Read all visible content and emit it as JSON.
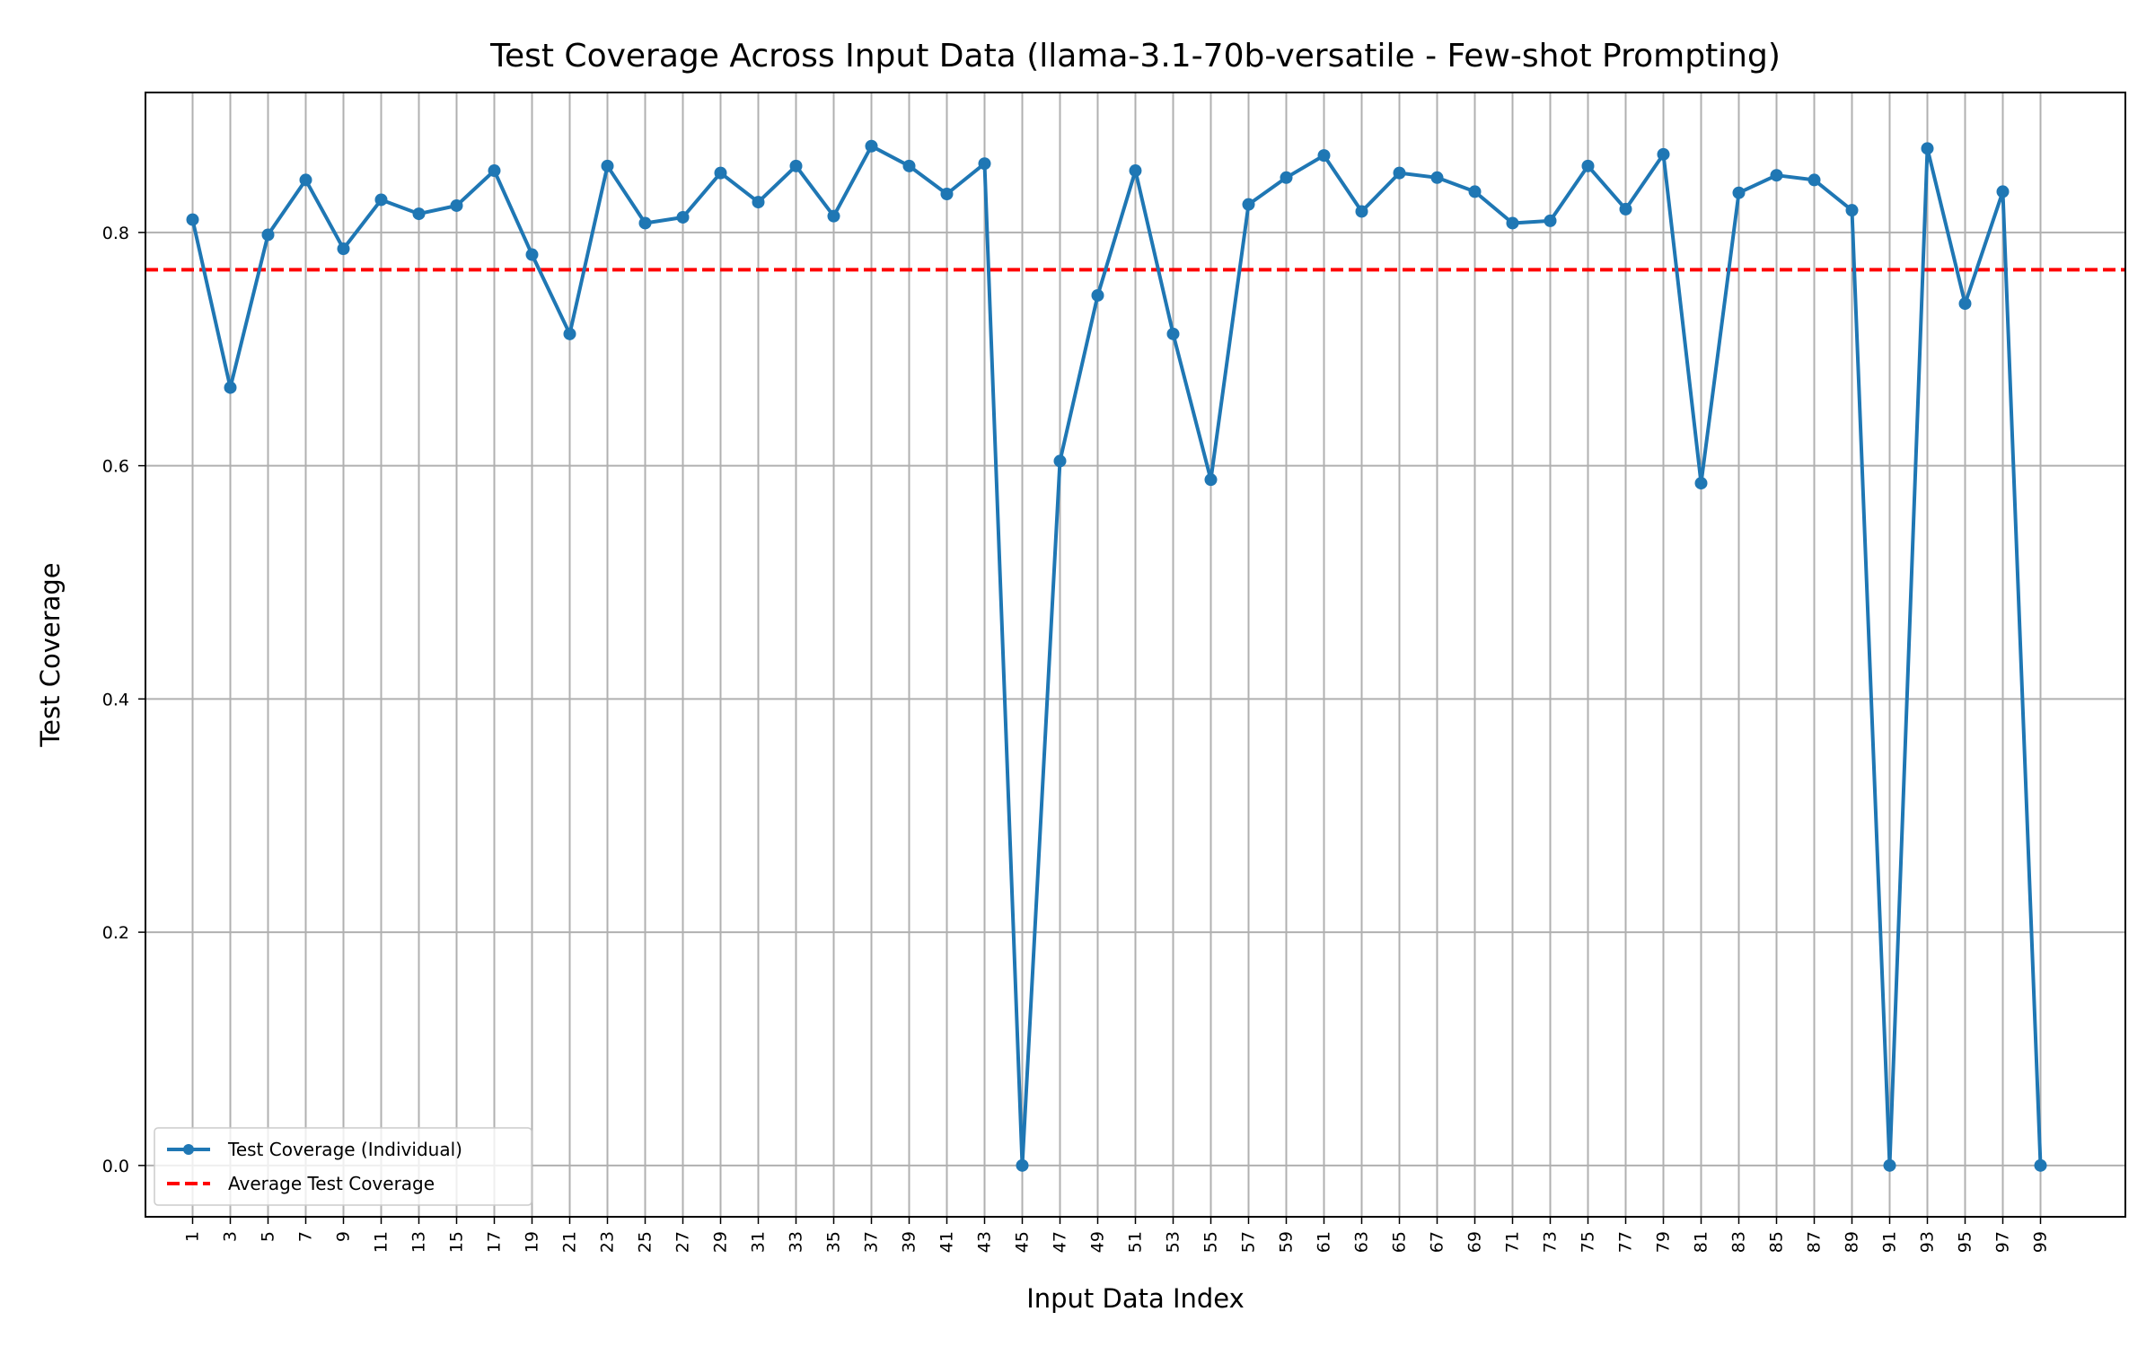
{
  "chart_data": {
    "type": "line",
    "title": "Test Coverage Across Input Data (llama-3.1-70b-versatile - Few-shot Prompting)",
    "xlabel": "Input Data Index",
    "ylabel": "Test Coverage",
    "xlim": [
      -1.5,
      103.5
    ],
    "ylim": [
      -0.044,
      0.92
    ],
    "x_ticks": [
      1,
      3,
      5,
      7,
      9,
      11,
      13,
      15,
      17,
      19,
      21,
      23,
      25,
      27,
      29,
      31,
      33,
      35,
      37,
      39,
      41,
      43,
      45,
      47,
      49,
      51,
      53,
      55,
      57,
      59,
      61,
      63,
      65,
      67,
      69,
      71,
      73,
      75,
      77,
      79,
      81,
      83,
      85,
      87,
      89,
      91,
      93,
      95,
      97,
      99
    ],
    "y_ticks": [
      0.0,
      0.2,
      0.4,
      0.6,
      0.8
    ],
    "grid": true,
    "legend_position": "lower-left",
    "series": [
      {
        "name": "Test Coverage (Individual)",
        "color": "#1f77b4",
        "style": "solid-with-markers",
        "x": [
          1,
          3,
          5,
          7,
          9,
          11,
          13,
          15,
          17,
          19,
          21,
          23,
          25,
          27,
          29,
          31,
          33,
          35,
          37,
          39,
          41,
          43,
          45,
          47,
          49,
          51,
          53,
          55,
          57,
          59,
          61,
          63,
          65,
          67,
          69,
          71,
          73,
          75,
          77,
          79,
          81,
          83,
          85,
          87,
          89,
          91,
          93,
          95,
          97,
          99
        ],
        "values": [
          0.811,
          0.667,
          0.798,
          0.845,
          0.786,
          0.828,
          0.816,
          0.823,
          0.853,
          0.781,
          0.713,
          0.857,
          0.808,
          0.813,
          0.851,
          0.826,
          0.857,
          0.814,
          0.874,
          0.857,
          0.833,
          0.859,
          0.0,
          0.604,
          0.746,
          0.853,
          0.713,
          0.588,
          0.824,
          0.847,
          0.866,
          0.818,
          0.851,
          0.847,
          0.835,
          0.808,
          0.81,
          0.857,
          0.82,
          0.867,
          0.585,
          0.834,
          0.849,
          0.845,
          0.819,
          0.0,
          0.872,
          0.739,
          0.835,
          0.0
        ]
      },
      {
        "name": "Average Test Coverage",
        "color": "#ff0000",
        "style": "dashed",
        "value": 0.768
      }
    ]
  }
}
